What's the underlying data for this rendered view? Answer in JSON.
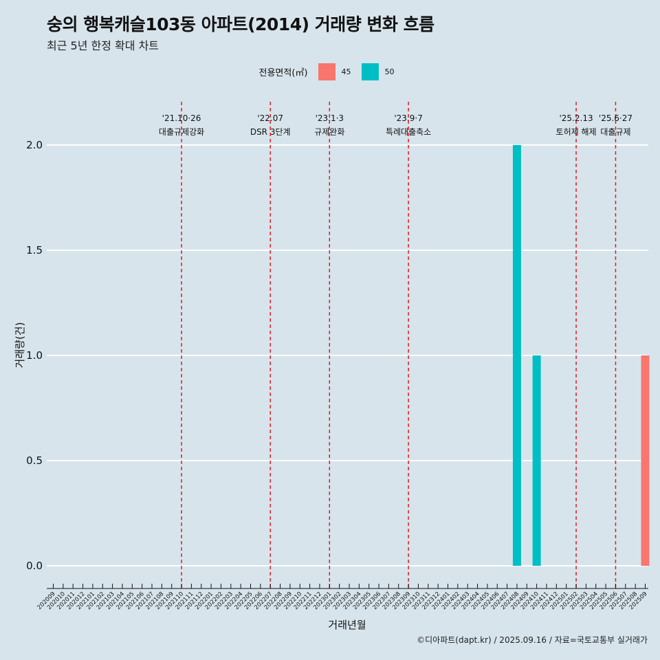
{
  "title": "숭의 행복캐슬103동 아파트(2014) 거래량 변화 흐름",
  "subtitle": "최근 5년 한정 확대 차트",
  "legend": {
    "title": "전용면적(㎡)",
    "items": [
      {
        "label": "45",
        "color": "#f8766d"
      },
      {
        "label": "50",
        "color": "#00bfc4"
      }
    ]
  },
  "footer": "©디아파트(dapt.kr) / 2025.09.16 / 자료=국토교통부 실거래가",
  "colors": {
    "background": "#d7e4ec",
    "grid": "#ffffff",
    "event_line": "#e8191c"
  },
  "chart_data": {
    "type": "bar",
    "xlabel": "거래년월",
    "ylabel": "거래량(건)",
    "ylim": [
      0,
      2
    ],
    "yticks": [
      "0.0",
      "0.5",
      "1.0",
      "1.5",
      "2.0"
    ],
    "categories": [
      "202009",
      "202010",
      "202011",
      "202012",
      "202101",
      "202102",
      "202103",
      "202104",
      "202105",
      "202106",
      "202107",
      "202108",
      "202109",
      "202110",
      "202111",
      "202112",
      "202201",
      "202202",
      "202203",
      "202204",
      "202205",
      "202206",
      "202207",
      "202208",
      "202209",
      "202210",
      "202211",
      "202212",
      "202301",
      "202302",
      "202303",
      "202304",
      "202305",
      "202306",
      "202307",
      "202308",
      "202309",
      "202310",
      "202311",
      "202312",
      "202401",
      "202402",
      "202403",
      "202404",
      "202405",
      "202406",
      "202407",
      "202408",
      "202409",
      "202410",
      "202411",
      "202412",
      "202501",
      "202502",
      "202503",
      "202504",
      "202505",
      "202506",
      "202507",
      "202508",
      "202509"
    ],
    "series": [
      {
        "name": "45",
        "color": "#f8766d",
        "points": [
          {
            "x": "202509",
            "value": 1
          }
        ]
      },
      {
        "name": "50",
        "color": "#00bfc4",
        "points": [
          {
            "x": "202408",
            "value": 2
          },
          {
            "x": "202410",
            "value": 1
          }
        ]
      }
    ],
    "annotations": [
      {
        "x": "202110",
        "date": "'21.10·26",
        "label": "대출규제강화"
      },
      {
        "x": "202207",
        "date": "'22.07",
        "label": "DSR 3단계"
      },
      {
        "x": "202301",
        "date": "'23.1·3",
        "label": "규제완화"
      },
      {
        "x": "202309",
        "date": "'23.9·7",
        "label": "특례대출축소"
      },
      {
        "x": "202502",
        "date": "'25.2.13",
        "label": "토허제 해제"
      },
      {
        "x": "202506",
        "date": "'25.6·27",
        "label": "대출규제"
      }
    ],
    "grid": true,
    "legend_position": "top"
  }
}
